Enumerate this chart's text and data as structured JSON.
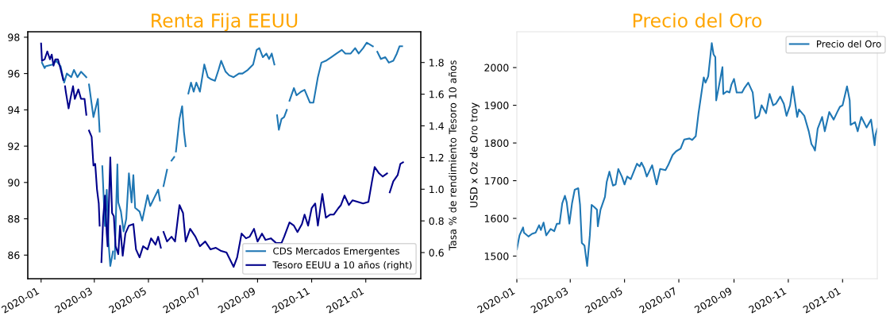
{
  "chart_data": [
    {
      "type": "line",
      "title": "Renta Fija EEUU",
      "y2label": "Tasa % de rendimiento Tesoro 10 años",
      "xlim": [
        "2019-12-17",
        "2021-03-04"
      ],
      "xticks": [
        "2020-01",
        "2020-03",
        "2020-05",
        "2020-07",
        "2020-09",
        "2020-11",
        "2021-01"
      ],
      "ylim": [
        84.7,
        98.3
      ],
      "yticks": [
        86,
        88,
        90,
        92,
        94,
        96,
        98
      ],
      "y2lim": [
        0.435,
        1.994
      ],
      "y2ticks": [
        0.6,
        0.8,
        {
          "value": 1.0,
          "label": "1.0"
        },
        1.2,
        1.4,
        1.6,
        1.8
      ],
      "legend": "bottom right",
      "series": [
        {
          "name": "CDS Mercados Emergentes",
          "color": "#1f77b4",
          "x": [
            "2020-01-02",
            "2020-01-05",
            "2020-01-06",
            "2020-01-14",
            "2020-01-18",
            "2020-01-23",
            "2020-01-27",
            "2020-01-30",
            "2020-02-04",
            "2020-02-07",
            "2020-02-11",
            "2020-02-15",
            "2020-02-21",
            "2020-02-22",
            "2020-02-24",
            "2020-02-29",
            "2020-03-03",
            "2020-03-05",
            "2020-03-07",
            "2020-03-08",
            "2020-03-10",
            "2020-03-13",
            "2020-03-15",
            "2020-03-17",
            "2020-03-19",
            "2020-03-22",
            "2020-03-23",
            "2020-03-24",
            "2020-03-27",
            "2020-03-28",
            "2020-03-31",
            "2020-04-03",
            "2020-04-06",
            "2020-04-09",
            "2020-04-12",
            "2020-04-14",
            "2020-04-16",
            "2020-04-21",
            "2020-04-24",
            "2020-04-30",
            "2020-05-03",
            "2020-05-07",
            "2020-05-12",
            "2020-05-14",
            "2020-05-16",
            "2020-05-18",
            "2020-05-22",
            "2020-05-24",
            "2020-05-27",
            "2020-05-30",
            "2020-05-31",
            "2020-06-01",
            "2020-06-05",
            "2020-06-08",
            "2020-06-10",
            "2020-06-12",
            "2020-06-13",
            "2020-06-15",
            "2020-06-18",
            "2020-06-21",
            "2020-06-24",
            "2020-06-28",
            "2020-07-03",
            "2020-07-07",
            "2020-07-10",
            "2020-07-15",
            "2020-07-19",
            "2020-07-22",
            "2020-07-27",
            "2020-07-31",
            "2020-08-05",
            "2020-08-11",
            "2020-08-15",
            "2020-08-21",
            "2020-08-27",
            "2020-08-31",
            "2020-09-03",
            "2020-09-07",
            "2020-09-11",
            "2020-09-14",
            "2020-09-17",
            "2020-09-20",
            "2020-09-21",
            "2020-09-23",
            "2020-09-25",
            "2020-09-28",
            "2020-10-01",
            "2020-10-04",
            "2020-10-05",
            "2020-10-07",
            "2020-10-12",
            "2020-10-15",
            "2020-10-20",
            "2020-10-24",
            "2020-10-30",
            "2020-11-03",
            "2020-11-08",
            "2020-11-12",
            "2020-11-17",
            "2020-11-23",
            "2020-11-29",
            "2020-12-05",
            "2020-12-09",
            "2020-12-15",
            "2020-12-20",
            "2020-12-24",
            "2020-12-29",
            "2021-01-02",
            "2021-01-09",
            "2021-01-11",
            "2021-01-14",
            "2021-01-18",
            "2021-01-23",
            "2021-01-27",
            "2021-02-01",
            "2021-02-05",
            "2021-02-08",
            "2021-02-11"
          ],
          "values": [
            96.6,
            96.3,
            96.4,
            96.5,
            96.7,
            96.4,
            95.5,
            96.0,
            95.8,
            96.2,
            95.8,
            96.1,
            95.8,
            null,
            95.4,
            93.6,
            94.2,
            94.6,
            92.8,
            null,
            90.9,
            87.6,
            89.6,
            86.7,
            85.4,
            86.2,
            null,
            85.8,
            91.0,
            88.9,
            88.4,
            87.3,
            88.0,
            90.5,
            88.9,
            90.4,
            88.6,
            88.4,
            87.9,
            89.3,
            88.7,
            89.1,
            89.6,
            89.0,
            null,
            89.8,
            90.7,
            null,
            91.2,
            91.4,
            null,
            91.7,
            93.5,
            94.2,
            92.8,
            92.0,
            null,
            94.9,
            95.5,
            95.0,
            95.5,
            95.0,
            96.5,
            95.8,
            95.7,
            95.6,
            96.2,
            96.7,
            96.1,
            95.9,
            95.8,
            96.0,
            96.0,
            96.2,
            96.5,
            97.3,
            97.4,
            96.9,
            97.1,
            96.8,
            97.1,
            96.5,
            null,
            93.7,
            92.9,
            93.5,
            93.6,
            94.0,
            null,
            94.5,
            95.2,
            94.8,
            95.0,
            95.1,
            94.4,
            94.4,
            95.8,
            96.6,
            96.7,
            96.9,
            97.1,
            97.3,
            97.1,
            97.1,
            97.4,
            97.1,
            97.4,
            97.7,
            97.5,
            null,
            97.2,
            96.8,
            96.9,
            96.6,
            96.7,
            97.1,
            97.5,
            97.5
          ]
        },
        {
          "name": "Tesoro EEUU a 10 años (right)",
          "color": "#00008b",
          "axis": "y2",
          "x": [
            "2020-01-01",
            "2020-01-02",
            "2020-01-05",
            "2020-01-08",
            "2020-01-11",
            "2020-01-13",
            "2020-01-15",
            "2020-01-17",
            "2020-01-20",
            "2020-01-23",
            "2020-01-26",
            "2020-01-27",
            "2020-01-28",
            "2020-01-29",
            "2020-02-01",
            "2020-02-03",
            "2020-02-06",
            "2020-02-08",
            "2020-02-12",
            "2020-02-15",
            "2020-02-19",
            "2020-02-21",
            "2020-02-22",
            "2020-02-24",
            "2020-02-27",
            "2020-02-29",
            "2020-03-02",
            "2020-03-04",
            "2020-03-06",
            "2020-03-07",
            "2020-03-08",
            "2020-03-09",
            "2020-03-11",
            "2020-03-13",
            "2020-03-15",
            "2020-03-16",
            "2020-03-19",
            "2020-03-21",
            "2020-03-23",
            "2020-03-25",
            "2020-03-28",
            "2020-03-30",
            "2020-04-02",
            "2020-04-05",
            "2020-04-09",
            "2020-04-14",
            "2020-04-17",
            "2020-04-21",
            "2020-04-25",
            "2020-04-30",
            "2020-05-04",
            "2020-05-09",
            "2020-05-12",
            "2020-05-15",
            "2020-05-16",
            "2020-05-18",
            "2020-05-22",
            "2020-05-27",
            "2020-05-31",
            "2020-06-05",
            "2020-06-09",
            "2020-06-12",
            "2020-06-17",
            "2020-06-23",
            "2020-06-28",
            "2020-07-04",
            "2020-07-10",
            "2020-07-16",
            "2020-07-22",
            "2020-07-28",
            "2020-08-05",
            "2020-08-09",
            "2020-08-14",
            "2020-08-19",
            "2020-08-23",
            "2020-08-28",
            "2020-09-01",
            "2020-09-06",
            "2020-09-10",
            "2020-09-16",
            "2020-09-22",
            "2020-09-28",
            "2020-10-01",
            "2020-10-07",
            "2020-10-12",
            "2020-10-16",
            "2020-10-21",
            "2020-10-24",
            "2020-10-28",
            "2020-11-01",
            "2020-11-05",
            "2020-11-08",
            "2020-11-13",
            "2020-11-17",
            "2020-11-22",
            "2020-11-26",
            "2020-12-01",
            "2020-12-04",
            "2020-12-08",
            "2020-12-13",
            "2020-12-17",
            "2020-12-23",
            "2020-12-29",
            "2021-01-04",
            "2021-01-08",
            "2021-01-11",
            "2021-01-16",
            "2021-01-20",
            "2021-01-25",
            "2021-01-26",
            "2021-01-28",
            "2021-02-01",
            "2021-02-06",
            "2021-02-09",
            "2021-02-12"
          ],
          "values": [
            1.92,
            1.81,
            1.82,
            1.87,
            1.82,
            1.85,
            1.78,
            1.82,
            1.82,
            1.76,
            1.69,
            null,
            1.65,
            1.61,
            1.51,
            1.57,
            1.65,
            1.57,
            1.63,
            1.57,
            1.57,
            1.47,
            null,
            1.37,
            1.33,
            1.15,
            1.16,
            1.0,
            0.91,
            0.77,
            null,
            0.54,
            0.82,
            0.96,
            0.72,
            0.64,
            1.2,
            0.85,
            0.83,
            0.64,
            0.59,
            0.77,
            0.58,
            0.72,
            0.77,
            0.78,
            0.62,
            0.57,
            0.64,
            0.62,
            0.69,
            0.65,
            0.7,
            0.63,
            null,
            0.73,
            0.67,
            0.7,
            0.67,
            0.9,
            0.85,
            0.67,
            0.75,
            0.7,
            0.64,
            0.67,
            0.62,
            0.63,
            0.61,
            0.6,
            0.51,
            0.57,
            0.72,
            0.69,
            0.7,
            0.75,
            0.67,
            0.72,
            0.68,
            0.69,
            0.66,
            0.66,
            0.7,
            0.79,
            0.77,
            0.73,
            0.78,
            0.84,
            0.77,
            0.88,
            0.91,
            0.77,
            0.97,
            0.82,
            0.84,
            0.84,
            0.88,
            0.9,
            0.96,
            0.9,
            0.93,
            0.92,
            0.91,
            0.92,
            1.05,
            1.14,
            1.1,
            1.08,
            1.1,
            null,
            0.98,
            1.05,
            1.09,
            1.16,
            1.17
          ]
        }
      ]
    },
    {
      "type": "line",
      "title": "Precio del Oro",
      "ylabel": "USD x Oz de Oro troy",
      "xlim": [
        "2020-01-01",
        "2021-02-09"
      ],
      "xticks": [
        "2020-01",
        "2020-03",
        "2020-05",
        "2020-07",
        "2020-09",
        "2020-11",
        "2021-01"
      ],
      "ylim": [
        1440,
        2095
      ],
      "yticks": [
        1500,
        1600,
        1700,
        1800,
        1900,
        2000
      ],
      "legend": "top right",
      "series": [
        {
          "name": "Precio del Oro",
          "color": "#1f77b4",
          "x": [
            "2020-01-01",
            "2020-01-04",
            "2020-01-08",
            "2020-01-09",
            "2020-01-14",
            "2020-01-18",
            "2020-01-22",
            "2020-01-26",
            "2020-01-28",
            "2020-01-31",
            "2020-02-03",
            "2020-02-08",
            "2020-02-12",
            "2020-02-15",
            "2020-02-18",
            "2020-02-21",
            "2020-02-24",
            "2020-02-26",
            "2020-02-29",
            "2020-03-03",
            "2020-03-06",
            "2020-03-10",
            "2020-03-12",
            "2020-03-14",
            "2020-03-17",
            "2020-03-20",
            "2020-03-23",
            "2020-03-25",
            "2020-03-28",
            "2020-03-31",
            "2020-04-01",
            "2020-04-04",
            "2020-04-09",
            "2020-04-11",
            "2020-04-14",
            "2020-04-18",
            "2020-04-21",
            "2020-04-24",
            "2020-04-28",
            "2020-05-01",
            "2020-05-04",
            "2020-05-08",
            "2020-05-15",
            "2020-05-18",
            "2020-05-20",
            "2020-05-23",
            "2020-05-26",
            "2020-06-01",
            "2020-06-06",
            "2020-06-10",
            "2020-06-16",
            "2020-06-19",
            "2020-06-24",
            "2020-06-28",
            "2020-07-03",
            "2020-07-07",
            "2020-07-13",
            "2020-07-16",
            "2020-07-20",
            "2020-07-23",
            "2020-07-29",
            "2020-07-31",
            "2020-08-03",
            "2020-08-07",
            "2020-08-09",
            "2020-08-11",
            "2020-08-12",
            "2020-08-15",
            "2020-08-19",
            "2020-08-20",
            "2020-08-24",
            "2020-08-27",
            "2020-08-29",
            "2020-09-01",
            "2020-09-04",
            "2020-09-10",
            "2020-09-13",
            "2020-09-17",
            "2020-09-22",
            "2020-09-25",
            "2020-09-29",
            "2020-10-02",
            "2020-10-07",
            "2020-10-11",
            "2020-10-15",
            "2020-10-18",
            "2020-10-23",
            "2020-10-27",
            "2020-10-30",
            "2020-11-03",
            "2020-11-06",
            "2020-11-11",
            "2020-11-13",
            "2020-11-19",
            "2020-11-24",
            "2020-11-27",
            "2020-11-29",
            "2020-12-01",
            "2020-12-04",
            "2020-12-09",
            "2020-12-12",
            "2020-12-17",
            "2020-12-22",
            "2020-12-26",
            "2020-12-29",
            "2021-01-01",
            "2021-01-06",
            "2021-01-09",
            "2021-01-10",
            "2021-01-15",
            "2021-01-18",
            "2021-01-22",
            "2021-01-25",
            "2021-01-28",
            "2021-02-02",
            "2021-02-06",
            "2021-02-07",
            "2021-02-09"
          ],
          "values": [
            1518,
            1555,
            1576,
            1562,
            1552,
            1559,
            1562,
            1582,
            1569,
            1589,
            1555,
            1572,
            1566,
            1586,
            1586,
            1640,
            1660,
            1643,
            1586,
            1640,
            1676,
            1680,
            1636,
            1535,
            1528,
            1474,
            1555,
            1636,
            1630,
            1623,
            1579,
            1623,
            1657,
            1697,
            1724,
            1687,
            1690,
            1731,
            1711,
            1690,
            1711,
            1704,
            1745,
            1738,
            1748,
            1734,
            1711,
            1741,
            1690,
            1731,
            1728,
            1741,
            1768,
            1778,
            1785,
            1809,
            1812,
            1808,
            1818,
            1877,
            1974,
            1960,
            1977,
            2065,
            2035,
            2028,
            1913,
            1950,
            2001,
            1930,
            1937,
            1934,
            1954,
            1970,
            1934,
            1934,
            1947,
            1960,
            1934,
            1865,
            1872,
            1900,
            1879,
            1930,
            1900,
            1904,
            1923,
            1904,
            1872,
            1900,
            1950,
            1869,
            1889,
            1872,
            1831,
            1797,
            1790,
            1780,
            1838,
            1869,
            1831,
            1882,
            1862,
            1882,
            1896,
            1900,
            1950,
            1913,
            1848,
            1855,
            1831,
            1869,
            1855,
            1841,
            1862,
            1794,
            1821,
            1838
          ]
        }
      ]
    }
  ]
}
